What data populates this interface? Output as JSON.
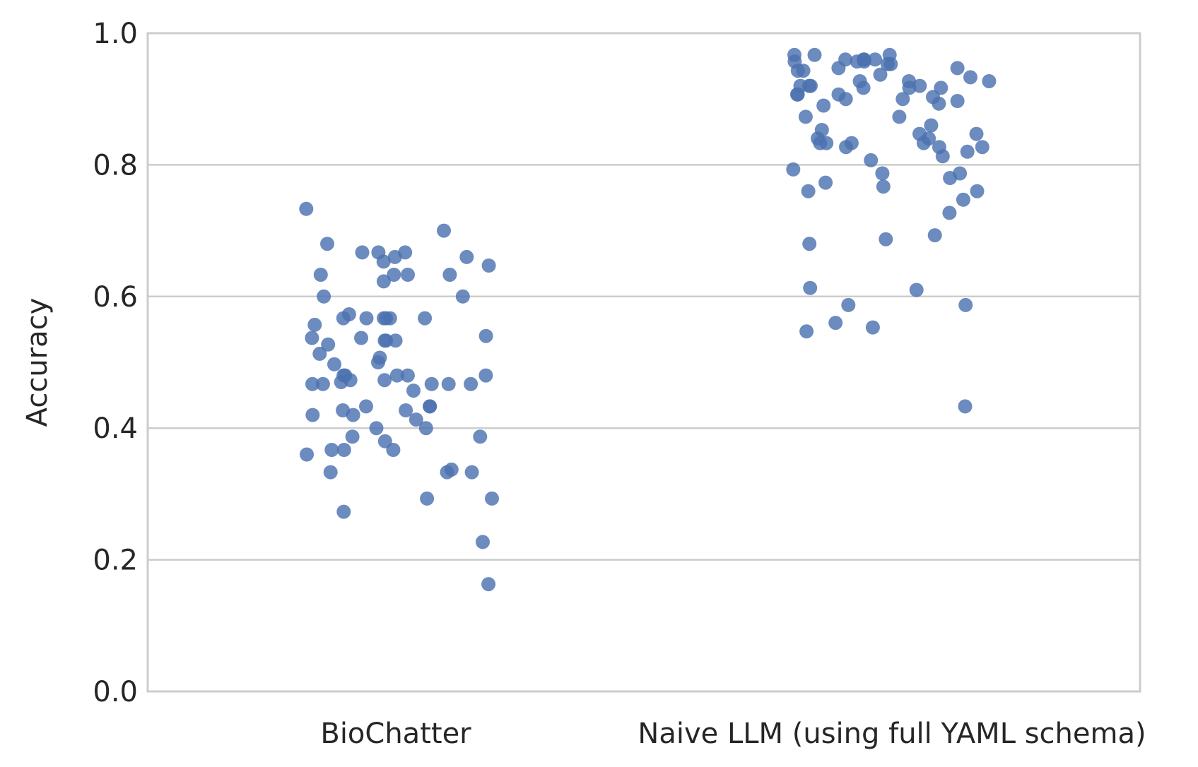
{
  "chart_data": {
    "type": "scatter",
    "subtype": "strip",
    "title": "",
    "xlabel": "",
    "ylabel": "Accuracy",
    "ylim": [
      0,
      1
    ],
    "yticks": [
      "0.0",
      "0.2",
      "0.4",
      "0.6",
      "0.8",
      "1.0"
    ],
    "categories": [
      "BioChatter",
      "Naive LLM (using full YAML schema)"
    ],
    "grid": "horizontal",
    "legend": "none",
    "color": "#4c72b0",
    "series": [
      {
        "category": "BioChatter",
        "values": [
          0.633,
          0.633,
          0.513,
          0.48,
          0.473,
          0.48,
          0.467,
          0.467,
          0.457,
          0.5,
          0.42,
          0.337,
          0.293,
          0.537,
          0.533,
          0.567,
          0.433,
          0.527,
          0.48,
          0.367,
          0.367,
          0.36,
          0.227,
          0.647,
          0.633,
          0.533,
          0.54,
          0.497,
          0.507,
          0.427,
          0.433,
          0.387,
          0.333,
          0.293,
          0.38,
          0.427,
          0.667,
          0.667,
          0.68,
          0.633,
          0.567,
          0.433,
          0.42,
          0.387,
          0.367,
          0.333,
          0.567,
          0.48,
          0.413,
          0.4,
          0.333,
          0.4,
          0.6,
          0.47,
          0.567,
          0.557,
          0.733,
          0.667,
          0.467,
          0.567,
          0.48,
          0.537,
          0.653,
          0.66,
          0.623,
          0.6,
          0.533,
          0.567,
          0.573,
          0.273,
          0.7,
          0.467,
          0.473,
          0.467,
          0.66,
          0.163
        ]
      },
      {
        "category": "Naive LLM (using full YAML schema)",
        "values": [
          0.847,
          0.747,
          0.917,
          0.92,
          0.9,
          0.907,
          0.957,
          0.96,
          0.56,
          0.807,
          0.84,
          0.893,
          0.9,
          0.827,
          0.967,
          0.957,
          0.927,
          0.937,
          0.92,
          0.927,
          0.767,
          0.587,
          0.917,
          0.687,
          0.84,
          0.78,
          0.933,
          0.96,
          0.943,
          0.89,
          0.903,
          0.86,
          0.833,
          0.433,
          0.947,
          0.947,
          0.833,
          0.92,
          0.92,
          0.907,
          0.873,
          0.897,
          0.787,
          0.853,
          0.953,
          0.943,
          0.587,
          0.967,
          0.873,
          0.917,
          0.907,
          0.833,
          0.727,
          0.833,
          0.773,
          0.793,
          0.61,
          0.613,
          0.553,
          0.967,
          0.953,
          0.96,
          0.957,
          0.813,
          0.787,
          0.827,
          0.927,
          0.76,
          0.693,
          0.847,
          0.827,
          0.96,
          0.76,
          0.82,
          0.68,
          0.547
        ]
      }
    ]
  }
}
